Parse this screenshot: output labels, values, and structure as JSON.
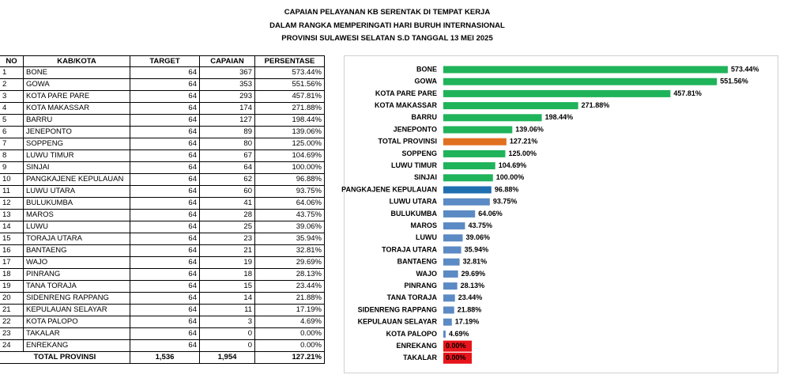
{
  "header": {
    "lines": [
      "CAPAIAN PELAYANAN KB SERENTAK DI TEMPAT KERJA",
      "DALAM RANGKA MEMPERINGATI HARI BURUH INTERNASIONAL",
      "PROVINSI SULAWESI SELATAN    S.D TANGGAL 13 MEI 2025"
    ]
  },
  "table": {
    "columns": [
      "NO",
      "KAB/KOTA",
      "TARGET",
      "CAPAIAN",
      "PERSENTASE"
    ],
    "rows": [
      [
        "1",
        "BONE",
        "64",
        "367",
        "573.44%"
      ],
      [
        "2",
        "GOWA",
        "64",
        "353",
        "551.56%"
      ],
      [
        "3",
        "KOTA PARE PARE",
        "64",
        "293",
        "457.81%"
      ],
      [
        "4",
        "KOTA MAKASSAR",
        "64",
        "174",
        "271.88%"
      ],
      [
        "5",
        "BARRU",
        "64",
        "127",
        "198.44%"
      ],
      [
        "6",
        "JENEPONTO",
        "64",
        "89",
        "139.06%"
      ],
      [
        "7",
        "SOPPENG",
        "64",
        "80",
        "125.00%"
      ],
      [
        "8",
        "LUWU TIMUR",
        "64",
        "67",
        "104.69%"
      ],
      [
        "9",
        "SINJAI",
        "64",
        "64",
        "100.00%"
      ],
      [
        "10",
        "PANGKAJENE KEPULAUAN",
        "64",
        "62",
        "96.88%"
      ],
      [
        "11",
        "LUWU UTARA",
        "64",
        "60",
        "93.75%"
      ],
      [
        "12",
        "BULUKUMBA",
        "64",
        "41",
        "64.06%"
      ],
      [
        "13",
        "MAROS",
        "64",
        "28",
        "43.75%"
      ],
      [
        "14",
        "LUWU",
        "64",
        "25",
        "39.06%"
      ],
      [
        "15",
        "TORAJA UTARA",
        "64",
        "23",
        "35.94%"
      ],
      [
        "16",
        "BANTAENG",
        "64",
        "21",
        "32.81%"
      ],
      [
        "17",
        "WAJO",
        "64",
        "19",
        "29.69%"
      ],
      [
        "18",
        "PINRANG",
        "64",
        "18",
        "28.13%"
      ],
      [
        "19",
        "TANA TORAJA",
        "64",
        "15",
        "23.44%"
      ],
      [
        "20",
        "SIDENRENG RAPPANG",
        "64",
        "14",
        "21.88%"
      ],
      [
        "21",
        "KEPULAUAN SELAYAR",
        "64",
        "11",
        "17.19%"
      ],
      [
        "22",
        "KOTA PALOPO",
        "64",
        "3",
        "4.69%"
      ],
      [
        "23",
        "TAKALAR",
        "64",
        "0",
        "0.00%"
      ],
      [
        "24",
        "ENREKANG",
        "64",
        "0",
        "0.00%"
      ]
    ],
    "total": [
      "TOTAL PROVINSI",
      "1,536",
      "1,954",
      "127.21%"
    ]
  },
  "chart_data": {
    "type": "hbar",
    "categories": [
      "BONE",
      "GOWA",
      "KOTA PARE PARE",
      "KOTA MAKASSAR",
      "BARRU",
      "JENEPONTO",
      "TOTAL PROVINSI",
      "SOPPENG",
      "LUWU TIMUR",
      "SINJAI",
      "PANGKAJENE KEPULAUAN",
      "LUWU UTARA",
      "BULUKUMBA",
      "MAROS",
      "LUWU",
      "TORAJA UTARA",
      "BANTAENG",
      "WAJO",
      "PINRANG",
      "TANA TORAJA",
      "SIDENRENG RAPPANG",
      "KEPULAUAN SELAYAR",
      "KOTA PALOPO",
      "ENREKANG",
      "TAKALAR"
    ],
    "values": [
      573.44,
      551.56,
      457.81,
      271.88,
      198.44,
      139.06,
      127.21,
      125,
      104.69,
      100,
      96.88,
      93.75,
      64.06,
      43.75,
      39.06,
      35.94,
      32.81,
      29.69,
      28.13,
      23.44,
      21.88,
      17.19,
      4.69,
      0,
      0
    ],
    "value_labels": [
      "573.44%",
      "551.56%",
      "457.81%",
      "271.88%",
      "198.44%",
      "139.06%",
      "127.21%",
      "125.00%",
      "104.69%",
      "100.00%",
      "96.88%",
      "93.75%",
      "64.06%",
      "43.75%",
      "39.06%",
      "35.94%",
      "32.81%",
      "29.69%",
      "28.13%",
      "23.44%",
      "21.88%",
      "17.19%",
      "4.69%",
      "0.00%",
      "0.00%"
    ],
    "colors": [
      "#1fb35a",
      "#1fb35a",
      "#1fb35a",
      "#1fb35a",
      "#1fb35a",
      "#1fb35a",
      "#e07020",
      "#1fb35a",
      "#1fb35a",
      "#1fb35a",
      "#1f6fb0",
      "#5b8ac4",
      "#5b8ac4",
      "#5b8ac4",
      "#5b8ac4",
      "#5b8ac4",
      "#5b8ac4",
      "#5b8ac4",
      "#5b8ac4",
      "#5b8ac4",
      "#5b8ac4",
      "#5b8ac4",
      "#5b8ac4",
      "#e8141c",
      "#e8141c"
    ]
  }
}
